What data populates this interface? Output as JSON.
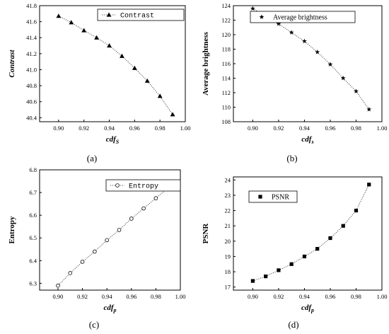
{
  "chart_data": [
    {
      "type": "line",
      "xlabel": "cdf",
      "xlabel_sub": "S",
      "ylabel": "Contrast",
      "caption": "(a)",
      "xlim": [
        0.885,
        1.0
      ],
      "ylim": [
        40.35,
        41.8
      ],
      "x_ticks": [
        "0.90",
        "0.92",
        "0.94",
        "0.96",
        "0.98",
        "1.00"
      ],
      "y_ticks": [
        "40.4",
        "40.6",
        "40.8",
        "41.0",
        "41.2",
        "41.4",
        "41.6",
        "41.8"
      ],
      "legend_placement": "top-right",
      "grid": false,
      "series": [
        {
          "name": "Contrast",
          "marker": "triangle",
          "x": [
            0.9,
            0.91,
            0.92,
            0.93,
            0.94,
            0.95,
            0.96,
            0.97,
            0.98,
            0.99
          ],
          "y": [
            41.67,
            41.59,
            41.49,
            41.4,
            41.3,
            41.17,
            41.02,
            40.86,
            40.67,
            40.44
          ]
        }
      ]
    },
    {
      "type": "line",
      "xlabel": "cdf",
      "xlabel_sub": "s",
      "ylabel": "Average brightness",
      "caption": "(b)",
      "xlim": [
        0.885,
        1.0
      ],
      "ylim": [
        108,
        124
      ],
      "x_ticks": [
        "0.90",
        "0.92",
        "0.94",
        "0.96",
        "0.98",
        "1.00"
      ],
      "y_ticks": [
        "108",
        "110",
        "112",
        "114",
        "116",
        "118",
        "120",
        "122",
        "124"
      ],
      "legend_placement": "top-right",
      "grid": false,
      "series": [
        {
          "name": "Average brightness",
          "marker": "star",
          "x": [
            0.9,
            0.91,
            0.92,
            0.93,
            0.94,
            0.95,
            0.96,
            0.97,
            0.98,
            0.99
          ],
          "y": [
            123.6,
            122.6,
            121.5,
            120.3,
            119.1,
            117.6,
            115.9,
            114.0,
            112.2,
            109.7
          ]
        }
      ]
    },
    {
      "type": "line",
      "xlabel": "cdf",
      "xlabel_sub": "p",
      "ylabel": "Entropy",
      "caption": "(c)",
      "xlim": [
        0.885,
        1.0
      ],
      "ylim": [
        6.27,
        6.8
      ],
      "x_ticks": [
        "0.90",
        "0.92",
        "0.94",
        "0.96",
        "0.98",
        "1.00"
      ],
      "y_ticks": [
        "6.3",
        "6.4",
        "6.5",
        "6.6",
        "6.7",
        "6.8"
      ],
      "legend_placement": "top-right",
      "grid": false,
      "series": [
        {
          "name": "Entropy",
          "marker": "circle-open",
          "x": [
            0.9,
            0.91,
            0.92,
            0.93,
            0.94,
            0.95,
            0.96,
            0.97,
            0.98,
            0.99
          ],
          "y": [
            6.29,
            6.345,
            6.395,
            6.44,
            6.49,
            6.535,
            6.585,
            6.63,
            6.675,
            6.72
          ]
        }
      ]
    },
    {
      "type": "line",
      "xlabel": "cdf",
      "xlabel_sub": "p",
      "ylabel": "PSNR",
      "caption": "(d)",
      "xlim": [
        0.885,
        1.0
      ],
      "ylim": [
        16.8,
        24.2
      ],
      "x_ticks": [
        "0.90",
        "0.92",
        "0.94",
        "0.96",
        "0.98",
        "1.00"
      ],
      "y_ticks": [
        "17",
        "18",
        "19",
        "20",
        "21",
        "22",
        "23",
        "24"
      ],
      "legend_placement": "top-left",
      "grid": false,
      "series": [
        {
          "name": "PSNR",
          "marker": "square",
          "x": [
            0.9,
            0.91,
            0.92,
            0.93,
            0.94,
            0.95,
            0.96,
            0.97,
            0.98,
            0.99
          ],
          "y": [
            17.4,
            17.7,
            18.1,
            18.5,
            19.0,
            19.5,
            20.2,
            21.0,
            22.0,
            23.7
          ]
        }
      ]
    }
  ]
}
